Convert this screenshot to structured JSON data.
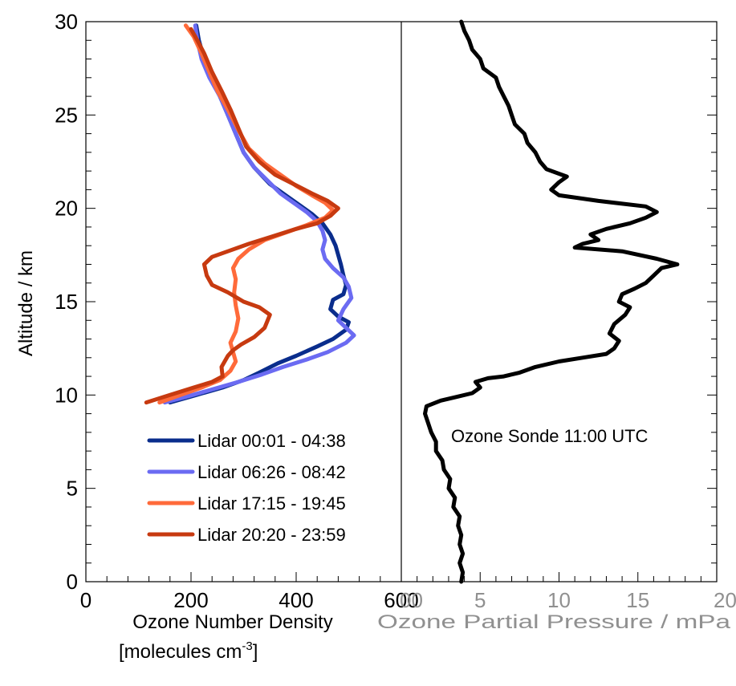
{
  "chart_data": [
    {
      "type": "line",
      "ylabel": "Altitude / km",
      "xlabel": "Ozone Number Density",
      "xlabel_line2_prefix": "[molecules cm",
      "xlabel_line2_sup": "-3",
      "xlabel_line2_suffix": "]",
      "xlim": [
        0,
        600
      ],
      "ylim": [
        0,
        30
      ],
      "xticks": [
        "0",
        "200",
        "400",
        "600"
      ],
      "yticks": [
        "0",
        "5",
        "10",
        "15",
        "20",
        "25",
        "30"
      ],
      "legend_position": "bottom-right",
      "series": [
        {
          "name": "Lidar 00:01 - 04:38",
          "color": "#0a2d8c",
          "points": [
            [
              160,
              9.6
            ],
            [
              210,
              10.0
            ],
            [
              260,
              10.4
            ],
            [
              300,
              10.8
            ],
            [
              330,
              11.2
            ],
            [
              365,
              11.7
            ],
            [
              400,
              12.1
            ],
            [
              440,
              12.6
            ],
            [
              470,
              13.0
            ],
            [
              495,
              13.5
            ],
            [
              500,
              13.9
            ],
            [
              480,
              14.2
            ],
            [
              465,
              14.6
            ],
            [
              470,
              15.1
            ],
            [
              490,
              15.4
            ],
            [
              495,
              15.9
            ],
            [
              490,
              16.4
            ],
            [
              485,
              17.0
            ],
            [
              480,
              17.5
            ],
            [
              475,
              18.0
            ],
            [
              465,
              18.6
            ],
            [
              450,
              19.2
            ],
            [
              430,
              19.7
            ],
            [
              405,
              20.2
            ],
            [
              380,
              20.7
            ],
            [
              350,
              21.3
            ],
            [
              320,
              22.2
            ],
            [
              300,
              23.0
            ],
            [
              285,
              24.0
            ],
            [
              270,
              25.0
            ],
            [
              255,
              26.0
            ],
            [
              240,
              27.0
            ],
            [
              225,
              28.0
            ],
            [
              215,
              29.0
            ],
            [
              210,
              29.8
            ]
          ]
        },
        {
          "name": "Lidar 06:26 - 08:42",
          "color": "#6b6bf2",
          "points": [
            [
              150,
              9.6
            ],
            [
              190,
              9.9
            ],
            [
              240,
              10.3
            ],
            [
              290,
              10.7
            ],
            [
              335,
              11.1
            ],
            [
              375,
              11.5
            ],
            [
              420,
              11.9
            ],
            [
              460,
              12.3
            ],
            [
              495,
              12.8
            ],
            [
              510,
              13.2
            ],
            [
              495,
              13.6
            ],
            [
              480,
              14.0
            ],
            [
              490,
              14.6
            ],
            [
              505,
              15.2
            ],
            [
              500,
              15.8
            ],
            [
              490,
              16.3
            ],
            [
              470,
              16.8
            ],
            [
              455,
              17.3
            ],
            [
              450,
              17.8
            ],
            [
              455,
              18.3
            ],
            [
              450,
              18.8
            ],
            [
              440,
              19.3
            ],
            [
              420,
              19.8
            ],
            [
              395,
              20.3
            ],
            [
              370,
              20.8
            ],
            [
              345,
              21.5
            ],
            [
              320,
              22.2
            ],
            [
              300,
              23.0
            ],
            [
              285,
              24.0
            ],
            [
              270,
              25.0
            ],
            [
              255,
              26.0
            ],
            [
              235,
              27.0
            ],
            [
              220,
              28.0
            ],
            [
              212,
              29.0
            ],
            [
              208,
              29.8
            ]
          ]
        },
        {
          "name": "Lidar 17:15 - 19:45",
          "color": "#ff6a3a",
          "points": [
            [
              140,
              9.6
            ],
            [
              180,
              10.0
            ],
            [
              220,
              10.4
            ],
            [
              255,
              10.8
            ],
            [
              275,
              11.3
            ],
            [
              285,
              11.8
            ],
            [
              280,
              12.3
            ],
            [
              275,
              12.8
            ],
            [
              285,
              13.4
            ],
            [
              290,
              14.1
            ],
            [
              285,
              14.8
            ],
            [
              282,
              15.5
            ],
            [
              285,
              16.2
            ],
            [
              280,
              16.8
            ],
            [
              290,
              17.3
            ],
            [
              310,
              17.8
            ],
            [
              340,
              18.3
            ],
            [
              380,
              18.7
            ],
            [
              420,
              19.1
            ],
            [
              455,
              19.5
            ],
            [
              470,
              19.9
            ],
            [
              455,
              20.3
            ],
            [
              430,
              20.7
            ],
            [
              400,
              21.2
            ],
            [
              370,
              21.8
            ],
            [
              340,
              22.4
            ],
            [
              310,
              23.2
            ],
            [
              290,
              24.2
            ],
            [
              270,
              25.3
            ],
            [
              250,
              26.3
            ],
            [
              235,
              27.3
            ],
            [
              220,
              28.3
            ],
            [
              205,
              29.2
            ],
            [
              190,
              29.8
            ]
          ]
        },
        {
          "name": "Lidar 20:20 - 23:59",
          "color": "#c73a10",
          "points": [
            [
              115,
              9.6
            ],
            [
              160,
              10.0
            ],
            [
              205,
              10.4
            ],
            [
              240,
              10.7
            ],
            [
              260,
              11.0
            ],
            [
              258,
              11.5
            ],
            [
              270,
              12.1
            ],
            [
              280,
              12.4
            ],
            [
              295,
              12.7
            ],
            [
              320,
              13.1
            ],
            [
              340,
              13.6
            ],
            [
              350,
              14.3
            ],
            [
              330,
              14.7
            ],
            [
              300,
              15.0
            ],
            [
              270,
              15.5
            ],
            [
              240,
              15.9
            ],
            [
              230,
              16.4
            ],
            [
              225,
              17.0
            ],
            [
              240,
              17.4
            ],
            [
              270,
              17.7
            ],
            [
              310,
              18.1
            ],
            [
              355,
              18.5
            ],
            [
              400,
              18.9
            ],
            [
              440,
              19.2
            ],
            [
              465,
              19.6
            ],
            [
              480,
              20.0
            ],
            [
              460,
              20.4
            ],
            [
              430,
              20.8
            ],
            [
              395,
              21.3
            ],
            [
              360,
              21.8
            ],
            [
              330,
              22.5
            ],
            [
              305,
              23.3
            ],
            [
              290,
              24.3
            ],
            [
              275,
              25.3
            ],
            [
              258,
              26.3
            ],
            [
              240,
              27.3
            ],
            [
              225,
              28.3
            ],
            [
              212,
              29.0
            ],
            [
              200,
              29.6
            ]
          ]
        }
      ]
    },
    {
      "type": "line",
      "xlabel": "Ozone Partial Pressure / mPa",
      "xlim": [
        0,
        20
      ],
      "ylim": [
        0,
        30
      ],
      "xticks": [
        "00",
        "5",
        "10",
        "15",
        "20"
      ],
      "annotation": "Ozone Sonde 11:00 UTC",
      "series": [
        {
          "name": "Ozone Sonde 11:00 UTC",
          "color": "#000000",
          "points": [
            [
              3.8,
              0.0
            ],
            [
              3.9,
              0.5
            ],
            [
              3.7,
              1.0
            ],
            [
              3.9,
              1.5
            ],
            [
              3.7,
              2.0
            ],
            [
              3.8,
              2.5
            ],
            [
              3.6,
              3.0
            ],
            [
              3.7,
              3.5
            ],
            [
              3.3,
              4.0
            ],
            [
              3.4,
              4.5
            ],
            [
              3.0,
              5.0
            ],
            [
              3.1,
              5.5
            ],
            [
              2.7,
              6.0
            ],
            [
              2.6,
              6.5
            ],
            [
              2.2,
              7.0
            ],
            [
              2.2,
              7.5
            ],
            [
              1.9,
              8.0
            ],
            [
              1.7,
              8.5
            ],
            [
              1.5,
              9.0
            ],
            [
              1.6,
              9.4
            ],
            [
              2.5,
              9.7
            ],
            [
              3.5,
              9.9
            ],
            [
              4.5,
              10.1
            ],
            [
              5.0,
              10.4
            ],
            [
              4.7,
              10.7
            ],
            [
              5.5,
              10.9
            ],
            [
              6.5,
              11.0
            ],
            [
              7.5,
              11.2
            ],
            [
              8.5,
              11.5
            ],
            [
              10.0,
              11.8
            ],
            [
              11.5,
              12.0
            ],
            [
              13.0,
              12.2
            ],
            [
              13.5,
              12.5
            ],
            [
              13.8,
              12.9
            ],
            [
              13.2,
              13.3
            ],
            [
              13.5,
              13.8
            ],
            [
              14.2,
              14.3
            ],
            [
              14.5,
              14.7
            ],
            [
              13.8,
              15.0
            ],
            [
              14.0,
              15.4
            ],
            [
              14.8,
              15.7
            ],
            [
              15.5,
              16.0
            ],
            [
              16.0,
              16.4
            ],
            [
              16.5,
              16.8
            ],
            [
              17.5,
              17.0
            ],
            [
              16.2,
              17.3
            ],
            [
              14.0,
              17.7
            ],
            [
              11.0,
              17.9
            ],
            [
              11.5,
              18.1
            ],
            [
              12.5,
              18.3
            ],
            [
              12.0,
              18.6
            ],
            [
              13.0,
              18.9
            ],
            [
              14.5,
              19.2
            ],
            [
              15.5,
              19.5
            ],
            [
              16.2,
              19.8
            ],
            [
              15.5,
              20.1
            ],
            [
              12.5,
              20.4
            ],
            [
              10.0,
              20.7
            ],
            [
              9.5,
              21.0
            ],
            [
              10.0,
              21.4
            ],
            [
              10.5,
              21.7
            ],
            [
              9.2,
              22.1
            ],
            [
              8.8,
              22.5
            ],
            [
              8.5,
              23.0
            ],
            [
              8.0,
              23.5
            ],
            [
              7.8,
              24.0
            ],
            [
              7.2,
              24.5
            ],
            [
              7.0,
              25.0
            ],
            [
              6.8,
              25.5
            ],
            [
              6.5,
              26.0
            ],
            [
              6.2,
              26.5
            ],
            [
              6.0,
              27.0
            ],
            [
              5.2,
              27.5
            ],
            [
              5.0,
              28.0
            ],
            [
              4.5,
              28.5
            ],
            [
              4.3,
              29.0
            ],
            [
              4.0,
              29.5
            ],
            [
              3.8,
              30.0
            ]
          ]
        }
      ]
    }
  ]
}
